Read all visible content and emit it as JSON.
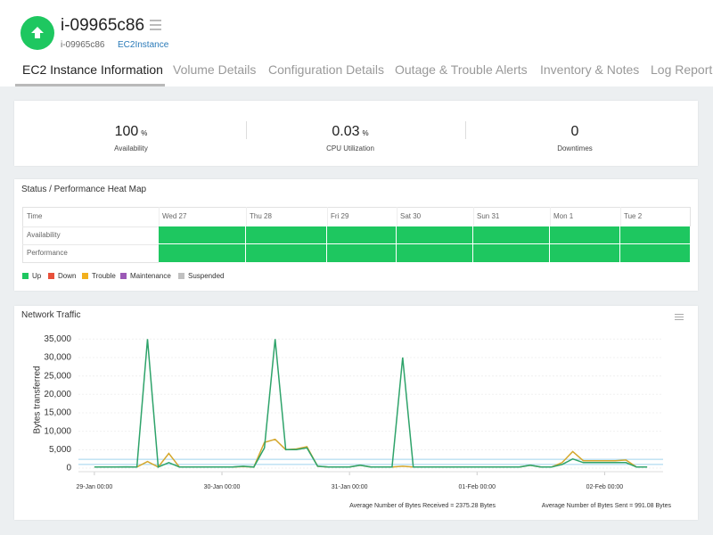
{
  "header": {
    "title": "i-09965c86",
    "subtitle": "i-09965c86",
    "type_link": "EC2Instance"
  },
  "tabs": [
    "EC2 Instance Information",
    "Volume Details",
    "Configuration Details",
    "Outage & Trouble Alerts",
    "Inventory & Notes",
    "Log Report"
  ],
  "summary": [
    {
      "value": 100,
      "unit": "%",
      "label": "Availability"
    },
    {
      "value": 0.03,
      "unit": "%",
      "label": "CPU Utilization"
    },
    {
      "value": 0,
      "label": "Downtimes"
    }
  ],
  "heatmap": {
    "title": "Status / Performance Heat Map",
    "corner": "Time",
    "columns": [
      "Wed 27",
      "Thu 28",
      "Fri 29",
      "Sat 30",
      "Sun 31",
      "Mon 1",
      "Tue 2"
    ],
    "rows": [
      "Availability",
      "Performance"
    ],
    "legend": [
      {
        "name": "Up",
        "color": "#1ec760"
      },
      {
        "name": "Down",
        "color": "#e8503a"
      },
      {
        "name": "Trouble",
        "color": "#f2b01e"
      },
      {
        "name": "Maintenance",
        "color": "#9b59b6"
      },
      {
        "name": "Suspended",
        "color": "#c0c0c0"
      }
    ]
  },
  "chart_data": {
    "type": "line",
    "title": "Network Traffic",
    "y_label": "Bytes transferred",
    "x": [
      0,
      2,
      4,
      6,
      8,
      10,
      12,
      14,
      16,
      18,
      20,
      22,
      24,
      26,
      28,
      30,
      32,
      34,
      36,
      38,
      40,
      42,
      44,
      46,
      48,
      50,
      52,
      54,
      56,
      58,
      60,
      62,
      64,
      66,
      68,
      70,
      72,
      74,
      76,
      78,
      80,
      82,
      84,
      86,
      88,
      90,
      92,
      94,
      96,
      98,
      100,
      102,
      104
    ],
    "xlim": [
      -3,
      107
    ],
    "xticks": [
      {
        "value": 0,
        "label": "29-Jan 00:00"
      },
      {
        "value": 24,
        "label": "30-Jan 00:00"
      },
      {
        "value": 48,
        "label": "31-Jan 00:00"
      },
      {
        "value": 72,
        "label": "01-Feb 00:00"
      },
      {
        "value": 96,
        "label": "02-Feb 00:00"
      }
    ],
    "ylim": [
      0,
      37000
    ],
    "yticks": [
      0,
      {
        "value": 5000,
        "label": "5,000"
      },
      {
        "value": 10000,
        "label": "10,000"
      },
      {
        "value": 15000,
        "label": "15,000"
      },
      {
        "value": 20000,
        "label": "20,000"
      },
      {
        "value": 25000,
        "label": "25,000"
      },
      {
        "value": 30000,
        "label": "30,000"
      },
      {
        "value": 35000,
        "label": "35,000"
      }
    ],
    "series": [
      {
        "color": "#2ea36a",
        "values": [
          300,
          300,
          300,
          350,
          300,
          35000,
          300,
          1500,
          300,
          300,
          300,
          300,
          300,
          300,
          500,
          300,
          5500,
          35000,
          5000,
          5000,
          5500,
          500,
          300,
          300,
          300,
          800,
          300,
          300,
          300,
          30000,
          300,
          300,
          300,
          300,
          300,
          300,
          300,
          300,
          300,
          300,
          300,
          800,
          300,
          300,
          1000,
          2500,
          1500,
          1500,
          1500,
          1500,
          1500,
          300,
          300
        ]
      },
      {
        "color": "#d4a72c",
        "values": [
          300,
          300,
          300,
          300,
          300,
          1800,
          300,
          4000,
          300,
          300,
          300,
          300,
          300,
          300,
          400,
          300,
          7000,
          7800,
          5000,
          5200,
          5800,
          500,
          300,
          300,
          300,
          800,
          300,
          300,
          300,
          500,
          300,
          300,
          300,
          300,
          300,
          300,
          300,
          300,
          300,
          300,
          300,
          800,
          300,
          300,
          1500,
          4500,
          2000,
          2000,
          2000,
          2000,
          2200,
          300,
          300
        ]
      }
    ],
    "averages": [
      {
        "label": "Average Number of Bytes Received = 2375.28 Bytes",
        "value": 2375.28,
        "color": "#9fd3ee"
      },
      {
        "label": "Average Number of Bytes Sent = 991.08 Bytes",
        "value": 991.08,
        "color": "#9fd3ee"
      }
    ]
  }
}
